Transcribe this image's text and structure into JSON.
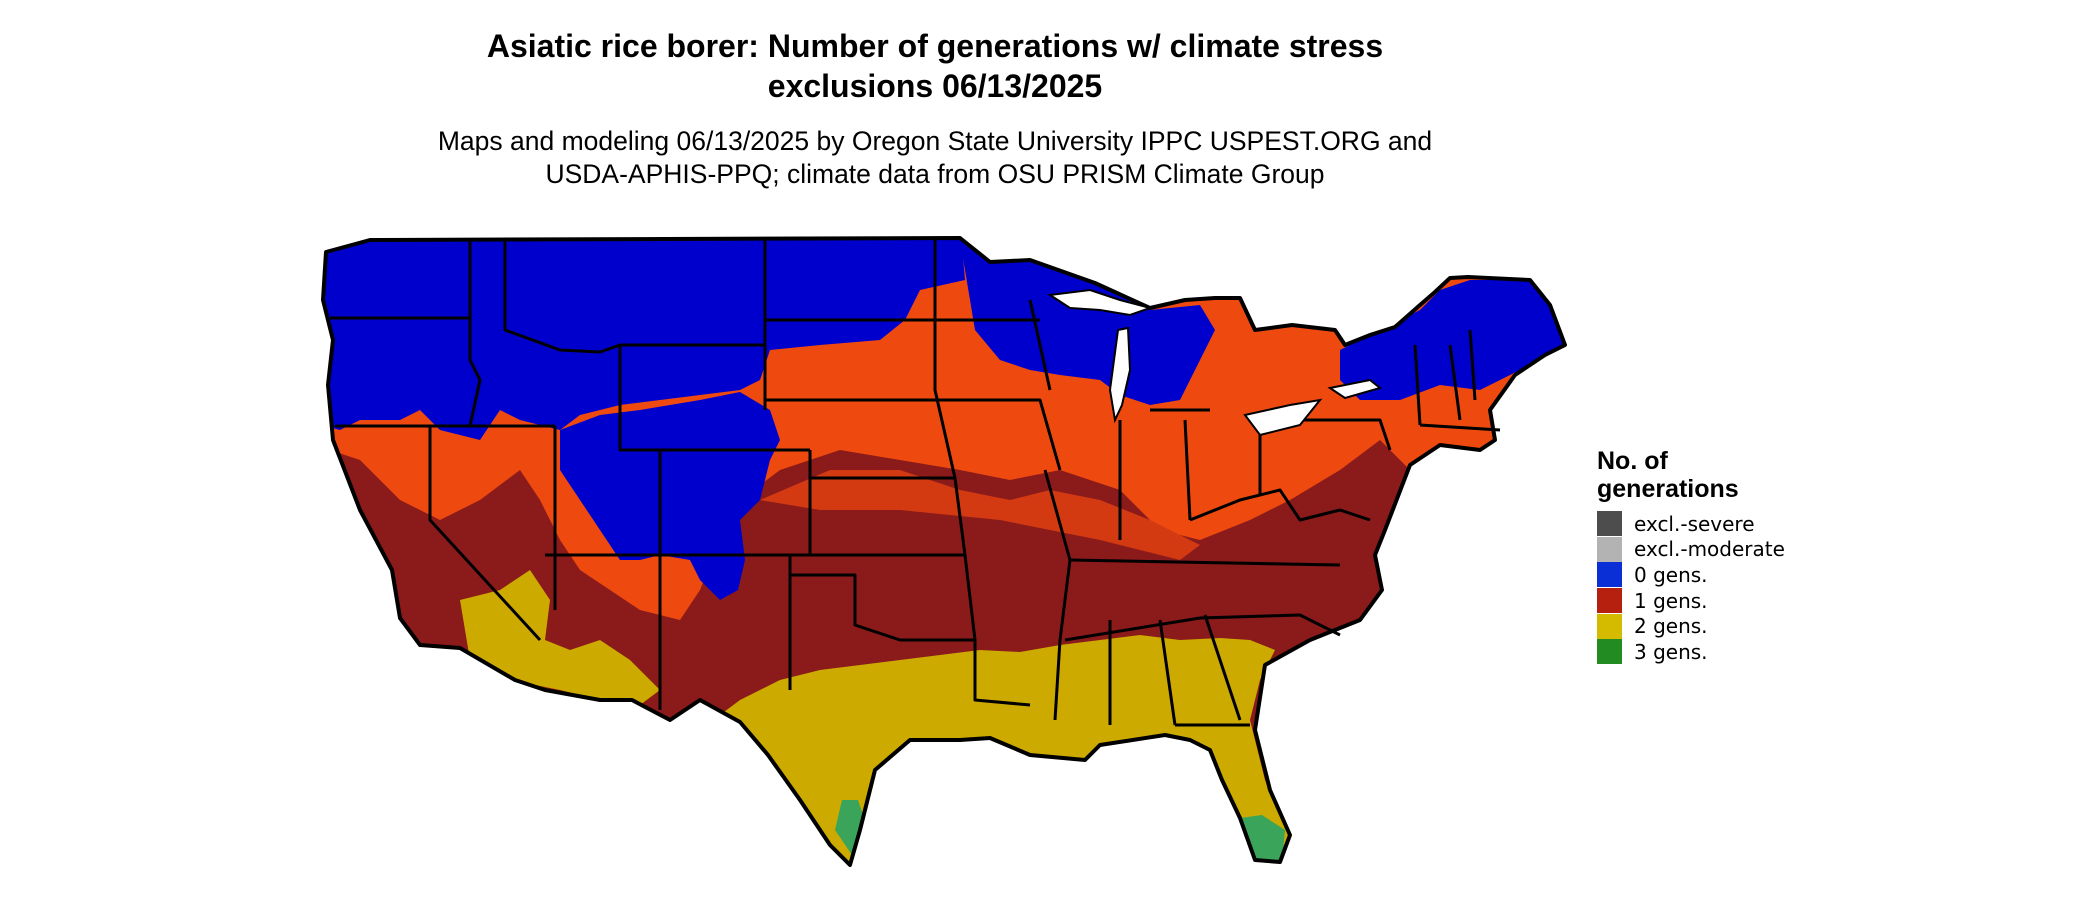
{
  "title": {
    "line1": "Asiatic rice borer: Number of generations w/ climate stress",
    "line2": "exclusions 06/13/2025"
  },
  "subtitle": {
    "line1": "Maps and modeling 06/13/2025 by Oregon State University IPPC USPEST.ORG and",
    "line2": "USDA-APHIS-PPQ; climate data from OSU PRISM Climate Group"
  },
  "legend": {
    "title_line1": "No. of",
    "title_line2": "generations",
    "items": [
      {
        "label": "excl.-severe",
        "color": "#4d4d4d"
      },
      {
        "label": "excl.-moderate",
        "color": "#b3b3b3"
      },
      {
        "label": "0 gens.",
        "color": "#0a2fd6"
      },
      {
        "label": "1 gens.",
        "color": "#b5200f"
      },
      {
        "label": "2 gens.",
        "color": "#d4bb00"
      },
      {
        "label": "3 gens.",
        "color": "#228b22"
      }
    ]
  },
  "map_colors": {
    "zero_gens": "#0000cc",
    "one_gen_orange": "#ee4a10",
    "one_gen_red": "#8b1a1a",
    "two_gens": "#ccaa00",
    "three_gens": "#3aa55a",
    "border": "#000000"
  }
}
